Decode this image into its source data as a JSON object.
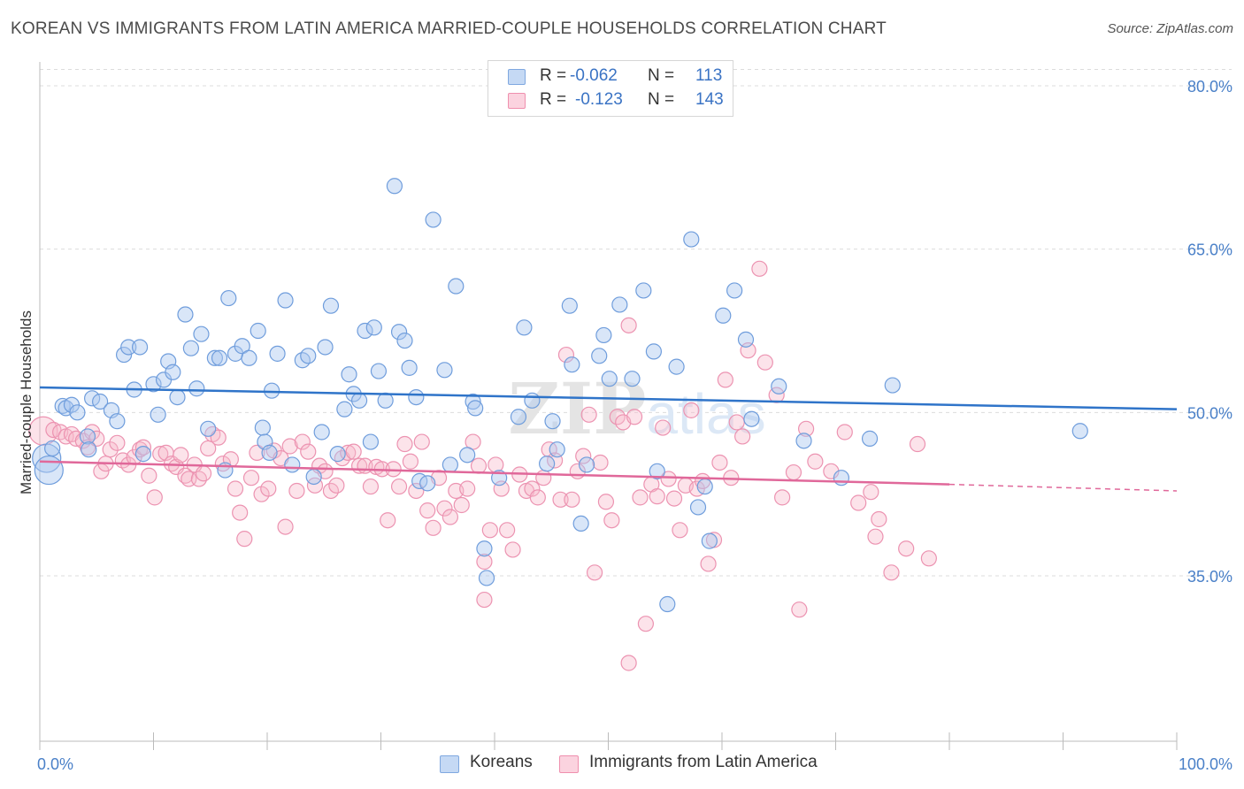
{
  "title": "KOREAN VS IMMIGRANTS FROM LATIN AMERICA MARRIED-COUPLE HOUSEHOLDS CORRELATION CHART",
  "source": "Source: ZipAtlas.com",
  "watermark": "ZIPatlas",
  "legend": {
    "rows": [
      {
        "r_label": "R =",
        "r_value": "-0.062",
        "n_label": "N =",
        "n_value": "113",
        "color": "#aac8f0"
      },
      {
        "r_label": "R =",
        "r_value": "-0.123",
        "n_label": "N =",
        "n_value": "143",
        "color": "#f7b8cb"
      }
    ]
  },
  "bottom_legend": [
    {
      "label": "Koreans",
      "color": "#aac8f0"
    },
    {
      "label": "Immigrants from Latin America",
      "color": "#f7b8cb"
    }
  ],
  "colors": {
    "blue": "#5b8fd6",
    "blue_line": "#2f74c9",
    "pink": "#ef8fae",
    "pink_line": "#e0689a",
    "tick_text": "#4a80c8"
  },
  "chart_data": {
    "type": "scatter",
    "title": "KOREAN VS IMMIGRANTS FROM LATIN AMERICA MARRIED-COUPLE HOUSEHOLDS CORRELATION CHART",
    "xlabel": "",
    "ylabel": "Married-couple Households",
    "xlim": [
      0,
      100
    ],
    "ylim": [
      20,
      82
    ],
    "x_tick_labels": [
      "0.0%",
      "100.0%"
    ],
    "y_ticks": [
      35,
      50,
      65,
      80
    ],
    "y_tick_labels": [
      "35.0%",
      "50.0%",
      "65.0%",
      "80.0%"
    ],
    "grid": true,
    "legend_position": "top-center",
    "series": [
      {
        "name": "Koreans",
        "color": "#5b8fd6",
        "trend": {
          "x": [
            0,
            100
          ],
          "y": [
            52.3,
            50.3
          ]
        },
        "points": [
          [
            0.6,
            45.8
          ],
          [
            1.1,
            46.7
          ],
          [
            2.0,
            50.6
          ],
          [
            2.3,
            50.4
          ],
          [
            2.8,
            50.7
          ],
          [
            3.3,
            50.0
          ],
          [
            4.2,
            47.8
          ],
          [
            4.3,
            46.6
          ],
          [
            4.6,
            51.3
          ],
          [
            5.3,
            51.0
          ],
          [
            6.3,
            50.2
          ],
          [
            6.8,
            49.2
          ],
          [
            7.4,
            55.3
          ],
          [
            7.8,
            56.0
          ],
          [
            8.3,
            52.1
          ],
          [
            8.8,
            56.0
          ],
          [
            9.1,
            46.2
          ],
          [
            10.0,
            52.6
          ],
          [
            10.4,
            49.8
          ],
          [
            10.9,
            53.0
          ],
          [
            11.3,
            54.7
          ],
          [
            11.7,
            53.7
          ],
          [
            12.1,
            51.4
          ],
          [
            12.8,
            59.0
          ],
          [
            13.3,
            55.9
          ],
          [
            13.8,
            52.2
          ],
          [
            14.2,
            57.2
          ],
          [
            14.8,
            48.5
          ],
          [
            15.4,
            55.0
          ],
          [
            15.8,
            55.0
          ],
          [
            16.3,
            44.7
          ],
          [
            16.6,
            60.5
          ],
          [
            17.2,
            55.4
          ],
          [
            17.8,
            56.1
          ],
          [
            18.4,
            55.0
          ],
          [
            19.2,
            57.5
          ],
          [
            19.6,
            48.6
          ],
          [
            19.8,
            47.3
          ],
          [
            20.2,
            46.3
          ],
          [
            20.4,
            52.0
          ],
          [
            20.9,
            55.4
          ],
          [
            21.6,
            60.3
          ],
          [
            22.2,
            45.2
          ],
          [
            23.1,
            54.8
          ],
          [
            23.6,
            55.2
          ],
          [
            24.1,
            44.1
          ],
          [
            24.8,
            48.2
          ],
          [
            25.1,
            56.0
          ],
          [
            25.6,
            59.8
          ],
          [
            26.2,
            46.2
          ],
          [
            26.8,
            50.3
          ],
          [
            27.2,
            53.5
          ],
          [
            27.6,
            51.7
          ],
          [
            28.1,
            51.1
          ],
          [
            28.6,
            57.5
          ],
          [
            29.1,
            47.3
          ],
          [
            29.4,
            57.8
          ],
          [
            29.8,
            53.8
          ],
          [
            30.4,
            51.1
          ],
          [
            31.2,
            70.8
          ],
          [
            31.6,
            57.4
          ],
          [
            32.1,
            56.6
          ],
          [
            32.5,
            54.1
          ],
          [
            33.1,
            51.4
          ],
          [
            33.4,
            43.7
          ],
          [
            34.1,
            43.5
          ],
          [
            34.6,
            67.7
          ],
          [
            35.6,
            53.9
          ],
          [
            36.1,
            45.2
          ],
          [
            36.6,
            61.6
          ],
          [
            37.6,
            46.1
          ],
          [
            38.1,
            51.0
          ],
          [
            38.3,
            50.4
          ],
          [
            39.1,
            37.5
          ],
          [
            39.3,
            34.8
          ],
          [
            40.4,
            44.0
          ],
          [
            42.1,
            49.6
          ],
          [
            42.6,
            57.8
          ],
          [
            43.3,
            51.1
          ],
          [
            44.6,
            45.3
          ],
          [
            45.1,
            49.2
          ],
          [
            45.5,
            46.6
          ],
          [
            46.6,
            59.8
          ],
          [
            46.8,
            54.4
          ],
          [
            47.6,
            39.8
          ],
          [
            48.1,
            45.2
          ],
          [
            49.2,
            55.2
          ],
          [
            49.6,
            57.1
          ],
          [
            50.1,
            53.1
          ],
          [
            51.0,
            59.9
          ],
          [
            52.1,
            53.1
          ],
          [
            53.1,
            61.2
          ],
          [
            54.0,
            55.6
          ],
          [
            54.3,
            44.6
          ],
          [
            55.2,
            32.4
          ],
          [
            56.0,
            54.2
          ],
          [
            57.3,
            65.9
          ],
          [
            57.9,
            41.3
          ],
          [
            58.5,
            43.2
          ],
          [
            58.9,
            38.2
          ],
          [
            60.1,
            58.9
          ],
          [
            61.1,
            61.2
          ],
          [
            62.1,
            56.7
          ],
          [
            62.6,
            49.4
          ],
          [
            65.0,
            52.4
          ],
          [
            67.2,
            47.4
          ],
          [
            70.5,
            44.0
          ],
          [
            73.0,
            47.6
          ],
          [
            75.0,
            52.5
          ],
          [
            91.5,
            48.3
          ],
          [
            0.8,
            44.7
          ]
        ],
        "sizes": {
          "0.6,45.8": "large",
          "0.8,44.7": "large"
        }
      },
      {
        "name": "Immigrants from Latin America",
        "color": "#ef8fae",
        "trend": {
          "x": [
            0,
            80
          ],
          "y": [
            45.5,
            43.4
          ]
        },
        "trend_dashed": {
          "x": [
            80,
            100
          ],
          "y": [
            43.4,
            42.8
          ]
        },
        "points": [
          [
            0.3,
            48.3
          ],
          [
            1.2,
            48.4
          ],
          [
            1.8,
            48.2
          ],
          [
            2.3,
            47.8
          ],
          [
            2.8,
            48.0
          ],
          [
            3.2,
            47.6
          ],
          [
            3.8,
            47.4
          ],
          [
            4.2,
            46.8
          ],
          [
            4.6,
            48.2
          ],
          [
            5.0,
            47.6
          ],
          [
            5.4,
            44.6
          ],
          [
            5.8,
            45.3
          ],
          [
            6.2,
            46.6
          ],
          [
            6.8,
            47.2
          ],
          [
            7.3,
            45.6
          ],
          [
            7.8,
            45.2
          ],
          [
            8.3,
            45.9
          ],
          [
            8.8,
            46.6
          ],
          [
            9.1,
            46.8
          ],
          [
            9.6,
            44.2
          ],
          [
            10.1,
            42.2
          ],
          [
            10.6,
            46.2
          ],
          [
            11.1,
            46.3
          ],
          [
            11.6,
            45.3
          ],
          [
            12.0,
            45.0
          ],
          [
            12.4,
            46.1
          ],
          [
            12.8,
            44.2
          ],
          [
            13.1,
            43.9
          ],
          [
            13.6,
            45.2
          ],
          [
            14.0,
            43.9
          ],
          [
            14.4,
            44.4
          ],
          [
            14.8,
            46.7
          ],
          [
            15.2,
            48.0
          ],
          [
            15.7,
            47.7
          ],
          [
            16.1,
            45.3
          ],
          [
            16.8,
            45.7
          ],
          [
            17.2,
            43.0
          ],
          [
            17.6,
            40.8
          ],
          [
            18.0,
            38.4
          ],
          [
            18.6,
            44.0
          ],
          [
            19.1,
            46.3
          ],
          [
            19.5,
            42.5
          ],
          [
            20.1,
            43.0
          ],
          [
            20.6,
            46.5
          ],
          [
            21.2,
            45.8
          ],
          [
            21.6,
            39.5
          ],
          [
            22.0,
            46.9
          ],
          [
            22.6,
            42.8
          ],
          [
            23.1,
            47.3
          ],
          [
            23.6,
            46.4
          ],
          [
            24.2,
            43.3
          ],
          [
            24.6,
            45.1
          ],
          [
            25.1,
            44.6
          ],
          [
            25.6,
            42.8
          ],
          [
            26.1,
            43.3
          ],
          [
            26.6,
            45.8
          ],
          [
            27.1,
            46.3
          ],
          [
            27.6,
            46.4
          ],
          [
            28.1,
            45.1
          ],
          [
            28.6,
            45.1
          ],
          [
            29.1,
            43.2
          ],
          [
            29.6,
            45.0
          ],
          [
            30.1,
            44.8
          ],
          [
            30.6,
            40.1
          ],
          [
            31.1,
            44.8
          ],
          [
            31.6,
            43.2
          ],
          [
            32.1,
            47.1
          ],
          [
            32.6,
            45.5
          ],
          [
            33.1,
            42.8
          ],
          [
            33.6,
            47.3
          ],
          [
            34.1,
            41.0
          ],
          [
            34.6,
            39.4
          ],
          [
            35.1,
            44.0
          ],
          [
            35.6,
            41.2
          ],
          [
            36.1,
            40.4
          ],
          [
            36.6,
            42.8
          ],
          [
            37.1,
            41.5
          ],
          [
            37.6,
            43.0
          ],
          [
            38.1,
            47.3
          ],
          [
            38.6,
            45.1
          ],
          [
            39.1,
            36.3
          ],
          [
            39.6,
            39.2
          ],
          [
            40.1,
            45.2
          ],
          [
            40.6,
            43.0
          ],
          [
            41.1,
            39.2
          ],
          [
            41.6,
            37.4
          ],
          [
            42.2,
            44.3
          ],
          [
            42.8,
            42.8
          ],
          [
            43.3,
            43.0
          ],
          [
            43.8,
            42.2
          ],
          [
            44.3,
            44.0
          ],
          [
            44.8,
            46.6
          ],
          [
            45.3,
            45.6
          ],
          [
            45.8,
            42.0
          ],
          [
            46.3,
            55.3
          ],
          [
            46.8,
            42.0
          ],
          [
            47.3,
            44.6
          ],
          [
            47.8,
            46.0
          ],
          [
            48.3,
            49.8
          ],
          [
            48.8,
            35.3
          ],
          [
            49.3,
            45.4
          ],
          [
            49.8,
            41.8
          ],
          [
            50.3,
            40.1
          ],
          [
            50.8,
            49.6
          ],
          [
            51.3,
            49.1
          ],
          [
            51.8,
            58.0
          ],
          [
            52.3,
            49.6
          ],
          [
            52.8,
            42.2
          ],
          [
            53.3,
            30.6
          ],
          [
            53.8,
            43.4
          ],
          [
            54.3,
            42.3
          ],
          [
            54.8,
            48.6
          ],
          [
            55.3,
            43.9
          ],
          [
            55.8,
            42.1
          ],
          [
            56.3,
            39.2
          ],
          [
            56.8,
            43.3
          ],
          [
            57.3,
            50.2
          ],
          [
            57.8,
            43.0
          ],
          [
            58.3,
            43.7
          ],
          [
            58.8,
            36.1
          ],
          [
            59.3,
            38.3
          ],
          [
            59.8,
            45.4
          ],
          [
            60.3,
            53.0
          ],
          [
            60.8,
            44.0
          ],
          [
            61.3,
            49.1
          ],
          [
            61.8,
            47.8
          ],
          [
            62.3,
            55.7
          ],
          [
            63.3,
            63.2
          ],
          [
            63.8,
            54.6
          ],
          [
            64.8,
            51.6
          ],
          [
            65.3,
            42.2
          ],
          [
            66.3,
            44.5
          ],
          [
            66.8,
            31.9
          ],
          [
            67.4,
            48.5
          ],
          [
            68.2,
            45.5
          ],
          [
            69.6,
            44.6
          ],
          [
            70.8,
            48.2
          ],
          [
            72.0,
            41.7
          ],
          [
            73.1,
            42.7
          ],
          [
            73.5,
            38.6
          ],
          [
            73.8,
            40.2
          ],
          [
            74.9,
            35.3
          ],
          [
            76.2,
            37.5
          ],
          [
            77.2,
            47.1
          ],
          [
            78.2,
            36.6
          ],
          [
            51.8,
            27.0
          ],
          [
            39.1,
            32.8
          ]
        ],
        "sizes": {
          "0.3,48.3": "large"
        }
      }
    ]
  }
}
